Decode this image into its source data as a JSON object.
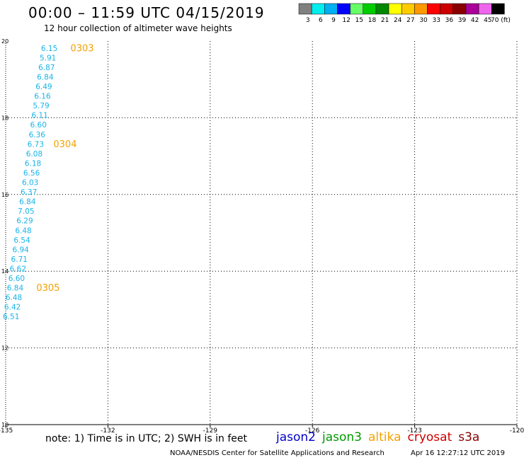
{
  "header": {
    "title": "00:00 – 11:59 UTC 04/15/2019",
    "subtitle": "12 hour collection of altimeter wave heights"
  },
  "color_scale": {
    "labels": [
      "3",
      "6",
      "9",
      "12",
      "15",
      "18",
      "21",
      "24",
      "27",
      "30",
      "33",
      "36",
      "39",
      "42",
      "45",
      "70 (ft)"
    ],
    "colors": [
      "#808080",
      "#00eeee",
      "#00b0f0",
      "#0000ff",
      "#66ff66",
      "#00cc00",
      "#008800",
      "#ffff00",
      "#ffcc00",
      "#ff9900",
      "#ff0000",
      "#cc0000",
      "#880000",
      "#aa0099",
      "#ee66ee",
      "#000000"
    ]
  },
  "chart_data": {
    "type": "map",
    "axes": {
      "lon_ticks": [
        "-135",
        "-132",
        "-129",
        "-126",
        "-123",
        "-120"
      ],
      "lat_ticks": [
        "20",
        "18",
        "16",
        "14",
        "12",
        "10"
      ],
      "lon_range": [
        -135,
        -120
      ],
      "lat_range": [
        10,
        20
      ],
      "grid": true
    },
    "track_color": "#18b4e8",
    "pass_color": "#f5a000",
    "observations": [
      {
        "lon": -133.72,
        "lat": 19.8,
        "swh": "6.15"
      },
      {
        "lon": -133.76,
        "lat": 19.55,
        "swh": "5.91"
      },
      {
        "lon": -133.8,
        "lat": 19.3,
        "swh": "6.87"
      },
      {
        "lon": -133.84,
        "lat": 19.05,
        "swh": "6.84"
      },
      {
        "lon": -133.88,
        "lat": 18.8,
        "swh": "6.49"
      },
      {
        "lon": -133.92,
        "lat": 18.55,
        "swh": "6.16"
      },
      {
        "lon": -133.96,
        "lat": 18.3,
        "swh": "5.79"
      },
      {
        "lon": -134.0,
        "lat": 18.05,
        "swh": "6.11"
      },
      {
        "lon": -134.04,
        "lat": 17.8,
        "swh": "6.60"
      },
      {
        "lon": -134.08,
        "lat": 17.55,
        "swh": "6.36"
      },
      {
        "lon": -134.12,
        "lat": 17.3,
        "swh": "6.73"
      },
      {
        "lon": -134.16,
        "lat": 17.05,
        "swh": "6.08"
      },
      {
        "lon": -134.2,
        "lat": 16.8,
        "swh": "6.18"
      },
      {
        "lon": -134.24,
        "lat": 16.55,
        "swh": "6.56"
      },
      {
        "lon": -134.28,
        "lat": 16.3,
        "swh": "6.03"
      },
      {
        "lon": -134.32,
        "lat": 16.05,
        "swh": "6.37"
      },
      {
        "lon": -134.36,
        "lat": 15.8,
        "swh": "6.84"
      },
      {
        "lon": -134.4,
        "lat": 15.55,
        "swh": "7.05"
      },
      {
        "lon": -134.44,
        "lat": 15.3,
        "swh": "6.29"
      },
      {
        "lon": -134.48,
        "lat": 15.05,
        "swh": "6.48"
      },
      {
        "lon": -134.52,
        "lat": 14.8,
        "swh": "6.54"
      },
      {
        "lon": -134.56,
        "lat": 14.55,
        "swh": "6.94"
      },
      {
        "lon": -134.6,
        "lat": 14.3,
        "swh": "6.71"
      },
      {
        "lon": -134.64,
        "lat": 14.05,
        "swh": "6.62"
      },
      {
        "lon": -134.68,
        "lat": 13.8,
        "swh": "6.60"
      },
      {
        "lon": -134.72,
        "lat": 13.55,
        "swh": "6.84"
      },
      {
        "lon": -134.76,
        "lat": 13.3,
        "swh": "6.48"
      },
      {
        "lon": -134.8,
        "lat": 13.05,
        "swh": "6.42"
      },
      {
        "lon": -134.84,
        "lat": 12.8,
        "swh": "6.51"
      }
    ],
    "pass_times": [
      {
        "lon": -133.1,
        "lat": 19.8,
        "label": "0303"
      },
      {
        "lon": -133.6,
        "lat": 17.3,
        "label": "0304"
      },
      {
        "lon": -134.1,
        "lat": 13.55,
        "label": "0305"
      }
    ]
  },
  "footer": {
    "note": "note:  1) Time is in UTC;  2) SWH is in feet",
    "satellites": [
      {
        "name": "jason2",
        "color": "#0000cc"
      },
      {
        "name": "jason3",
        "color": "#009900"
      },
      {
        "name": "altika",
        "color": "#f5a000"
      },
      {
        "name": "cryosat",
        "color": "#cc0000"
      },
      {
        "name": "s3a",
        "color": "#880000"
      }
    ],
    "credit": "NOAA/NESDIS Center for Satellite Applications and Research",
    "timestamp": "Apr 16 12:27:12 UTC 2019"
  }
}
